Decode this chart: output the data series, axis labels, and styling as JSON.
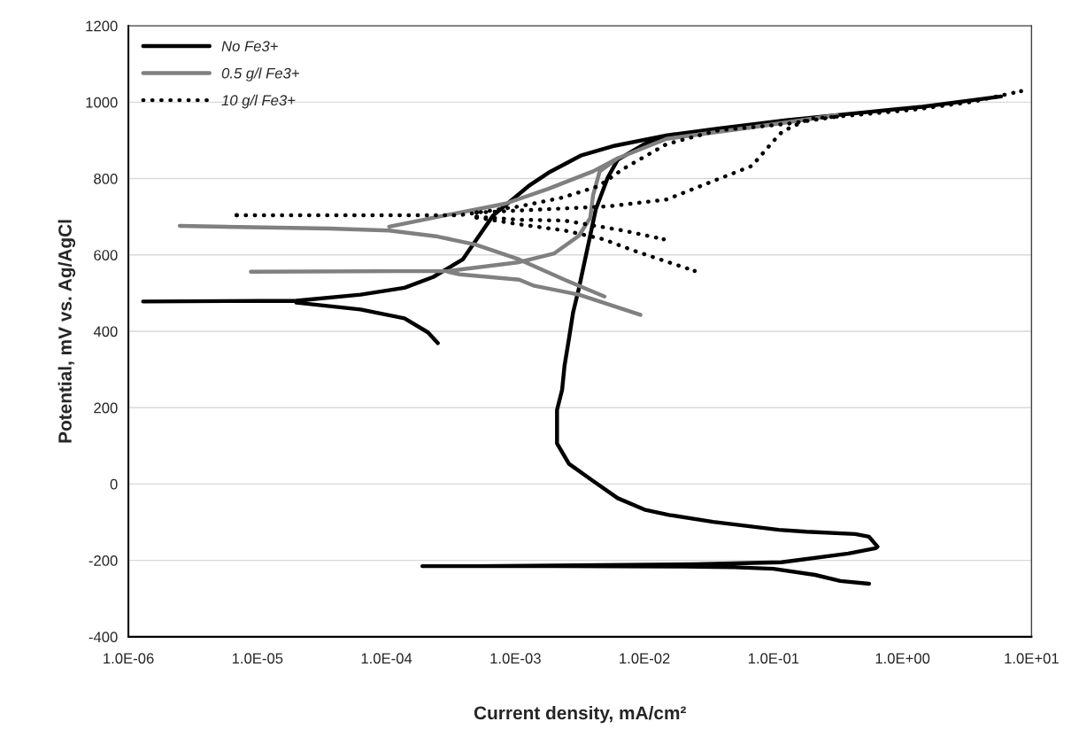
{
  "chart_data": {
    "type": "line",
    "xlabel": "Current density, mA/cm²",
    "ylabel": "Potential, mV vs. Ag/AgCl",
    "log": "x",
    "xlim": [
      1e-06,
      10
    ],
    "ylim": [
      -400,
      1200
    ],
    "xticks": [
      {
        "value": 1e-06,
        "label": "1.0E-06"
      },
      {
        "value": 1e-05,
        "label": "1.0E-05"
      },
      {
        "value": 0.0001,
        "label": "1.0E-04"
      },
      {
        "value": 0.001,
        "label": "1.0E-03"
      },
      {
        "value": 0.01,
        "label": "1.0E-02"
      },
      {
        "value": 0.1,
        "label": "1.0E-01"
      },
      {
        "value": 1,
        "label": "1.0E+00"
      },
      {
        "value": 10,
        "label": "1.0E+01"
      }
    ],
    "yticks": [
      -400,
      -200,
      0,
      200,
      400,
      600,
      800,
      1000,
      1200
    ],
    "grid": "y",
    "legend": "top left",
    "marker": "none",
    "series": [
      {
        "name": "No Fe3+",
        "color": "#000000",
        "line_style": "solid",
        "x": [
          0.55,
          0.33,
          0.21,
          0.1,
          0.05,
          0.02,
          0.002,
          0.00019,
          null,
          0.0005,
          0.025,
          0.115,
          0.38,
          0.62,
          0.64,
          0.55,
          0.43,
          0.18,
          0.11,
          0.034,
          0.0155,
          0.01,
          0.0062,
          0.004,
          0.0026,
          0.0021,
          0.0021,
          0.0021,
          0.0023,
          0.0024,
          0.0026,
          0.0028,
          0.0031,
          0.0042,
          0.0052,
          0.0062,
          0.01,
          0.0148,
          0.037,
          0.126,
          0.43,
          1.43,
          5.8,
          null,
          1.3e-06,
          2e-05,
          6.3e-05,
          0.000138,
          0.00023,
          0.00039,
          0.00067,
          0.00126,
          0.0018,
          0.0032,
          0.0059,
          0.0148,
          null,
          2e-05,
          6.3e-05,
          0.000138,
          0.00021,
          0.00025
        ],
        "values": [
          -261,
          -254,
          -238,
          -222,
          -218,
          -216,
          -215,
          -215,
          null,
          -215,
          -210,
          -205,
          -182,
          -168,
          -164,
          -138,
          -131,
          -125,
          -120,
          -99,
          -81,
          -67,
          -37,
          8,
          53,
          106,
          150,
          194,
          247,
          309,
          381,
          450,
          512,
          720,
          803,
          849,
          890,
          913,
          931,
          953,
          971,
          988,
          1015,
          null,
          478,
          480,
          496,
          514,
          542,
          588,
          703,
          780,
          815,
          860,
          886,
          913,
          null,
          475,
          457,
          434,
          397,
          369
        ]
      },
      {
        "name": "0.5 g/l Fe3+",
        "color": "#808080",
        "line_style": "solid",
        "x": [
          2.5e-06,
          3.6e-05,
          0.000105,
          0.00025,
          0.00049,
          0.00107,
          0.0024,
          0.0049,
          null,
          0.000105,
          0.00029,
          0.00083,
          0.0018,
          0.004,
          0.0062,
          0.0148,
          0.068,
          0.31,
          null,
          8.9e-06,
          0.0003,
          0.00107,
          0.002,
          0.0031,
          0.0038,
          0.004,
          0.0045,
          0.0062,
          null,
          0.0003,
          0.00037,
          0.00107,
          0.0014,
          0.0031,
          0.0093
        ],
        "values": [
          676,
          669,
          664,
          648,
          627,
          588,
          535,
          491,
          null,
          674,
          704,
          734,
          773,
          819,
          853,
          904,
          934,
          966,
          null,
          556,
          558,
          581,
          604,
          650,
          697,
          757,
          819,
          853,
          null,
          556,
          549,
          535,
          519,
          496,
          443
        ]
      },
      {
        "name": "10 g/l Fe3+",
        "color": "#000000",
        "line_style": "dotted",
        "x": [
          6.9e-06,
          0.0001,
          0.00037,
          0.00107,
          0.0023,
          0.0044,
          0.0069,
          0.0148,
          0.037,
          0.126,
          0.31,
          1.2,
          3.5,
          8.3,
          null,
          0.0005,
          0.0052,
          0.0148,
          0.037,
          0.068,
          0.098,
          0.117,
          0.19,
          0.31,
          null,
          0.0005,
          0.00107,
          0.0024,
          0.0068,
          0.0141,
          null,
          0.0005,
          0.00107,
          0.0024,
          0.0048,
          0.0083,
          0.0245
        ],
        "values": [
          704,
          704,
          704,
          727,
          750,
          780,
          826,
          890,
          926,
          943,
          962,
          980,
          1001,
          1029,
          null,
          711,
          727,
          745,
          798,
          833,
          895,
          923,
          957,
          962,
          null,
          700,
          692,
          690,
          664,
          641,
          null,
          698,
          680,
          664,
          641,
          611,
          558
        ]
      }
    ]
  }
}
